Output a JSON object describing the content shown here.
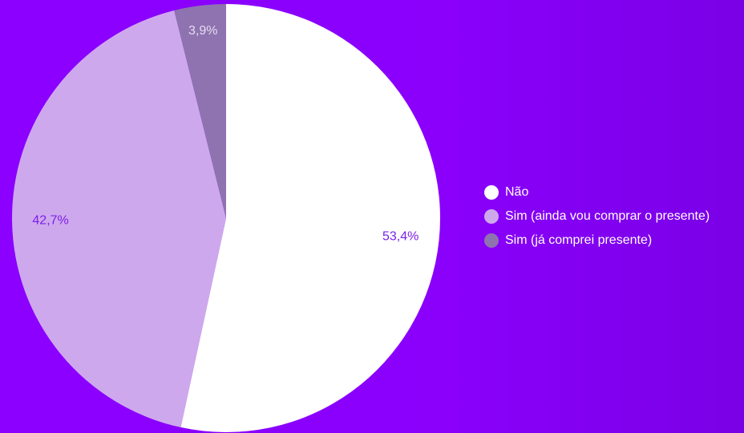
{
  "chart_data": {
    "type": "pie",
    "title": "",
    "legend_position": "right",
    "start_angle_deg": 0,
    "direction": "clockwise",
    "slices": [
      {
        "label": "Não",
        "value": 53.4,
        "display": "53,4%",
        "color": "#ffffff",
        "label_color": "#7b1fe8"
      },
      {
        "label": "Sim (ainda vou comprar o presente)",
        "value": 42.7,
        "display": "42,7%",
        "color": "#cea8ec",
        "label_color": "#7b1fe8"
      },
      {
        "label": "Sim (já comprei presente)",
        "value": 3.9,
        "display": "3,9%",
        "color": "#8e73b0",
        "label_color": "#e6dcf2"
      }
    ]
  }
}
